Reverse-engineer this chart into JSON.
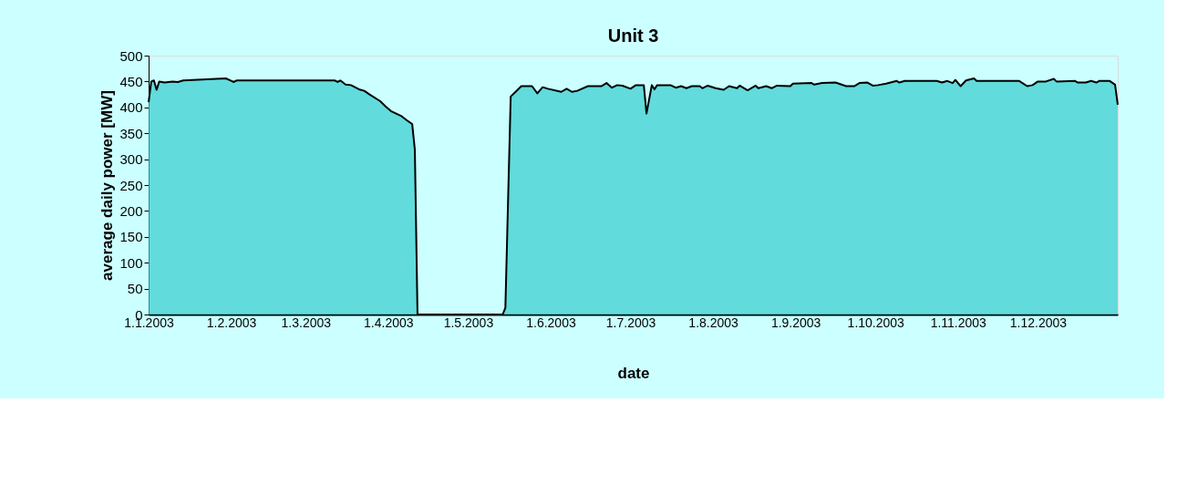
{
  "chart_data": {
    "type": "area",
    "title": "Unit 3",
    "xlabel": "date",
    "ylabel": "average daily power [MW]",
    "color": "#33cccc",
    "grid": false,
    "xlim": [
      "2003-01-01",
      "2003-12-31"
    ],
    "xticks": [
      {
        "value": "2003-01-01",
        "label": "1.1.2003"
      },
      {
        "value": "2003-02-01",
        "label": "1.2.2003"
      },
      {
        "value": "2003-03-01",
        "label": "1.3.2003"
      },
      {
        "value": "2003-04-01",
        "label": "1.4.2003"
      },
      {
        "value": "2003-05-01",
        "label": "1.5.2003"
      },
      {
        "value": "2003-06-01",
        "label": "1.6.2003"
      },
      {
        "value": "2003-07-01",
        "label": "1.7.2003"
      },
      {
        "value": "2003-08-01",
        "label": "1.8.2003"
      },
      {
        "value": "2003-09-01",
        "label": "1.9.2003"
      },
      {
        "value": "2003-10-01",
        "label": "1.10.2003"
      },
      {
        "value": "2003-11-01",
        "label": "1.11.2003"
      },
      {
        "value": "2003-12-01",
        "label": "1.12.2003"
      }
    ],
    "ylim": [
      0,
      500
    ],
    "yticks": [
      0,
      50,
      100,
      150,
      200,
      250,
      300,
      350,
      400,
      450,
      500
    ],
    "x": [
      "2003-01-01",
      "2003-01-02",
      "2003-01-03",
      "2003-01-04",
      "2003-01-05",
      "2003-01-07",
      "2003-01-10",
      "2003-01-12",
      "2003-01-14",
      "2003-01-30",
      "2003-02-02",
      "2003-02-03",
      "2003-03-12",
      "2003-03-13",
      "2003-03-14",
      "2003-03-16",
      "2003-03-18",
      "2003-03-21",
      "2003-03-23",
      "2003-03-25",
      "2003-03-29",
      "2003-03-31",
      "2003-04-02",
      "2003-04-06",
      "2003-04-08",
      "2003-04-10",
      "2003-04-11",
      "2003-04-12",
      "2003-05-14",
      "2003-05-15",
      "2003-05-17",
      "2003-05-19",
      "2003-05-21",
      "2003-05-25",
      "2003-05-27",
      "2003-05-29",
      "2003-05-31",
      "2003-06-05",
      "2003-06-07",
      "2003-06-09",
      "2003-06-11",
      "2003-06-15",
      "2003-06-20",
      "2003-06-22",
      "2003-06-24",
      "2003-06-26",
      "2003-06-28",
      "2003-07-01",
      "2003-07-03",
      "2003-07-06",
      "2003-07-07",
      "2003-07-09",
      "2003-07-10",
      "2003-07-11",
      "2003-07-16",
      "2003-07-18",
      "2003-07-20",
      "2003-07-22",
      "2003-07-24",
      "2003-07-27",
      "2003-07-28",
      "2003-07-30",
      "2003-08-02",
      "2003-08-05",
      "2003-08-07",
      "2003-08-10",
      "2003-08-11",
      "2003-08-14",
      "2003-08-17",
      "2003-08-18",
      "2003-08-21",
      "2003-08-23",
      "2003-08-25",
      "2003-08-30",
      "2003-08-31",
      "2003-09-07",
      "2003-09-08",
      "2003-09-11",
      "2003-09-16",
      "2003-09-20",
      "2003-09-23",
      "2003-09-25",
      "2003-09-28",
      "2003-09-30",
      "2003-10-02",
      "2003-10-05",
      "2003-10-09",
      "2003-10-10",
      "2003-10-12",
      "2003-10-24",
      "2003-10-26",
      "2003-10-28",
      "2003-10-30",
      "2003-10-31",
      "2003-11-02",
      "2003-11-04",
      "2003-11-07",
      "2003-11-08",
      "2003-11-24",
      "2003-11-27",
      "2003-11-29",
      "2003-12-01",
      "2003-12-04",
      "2003-12-07",
      "2003-12-08",
      "2003-12-15",
      "2003-12-16",
      "2003-12-19",
      "2003-12-21",
      "2003-12-23",
      "2003-12-24",
      "2003-12-28",
      "2003-12-30",
      "2003-12-31"
    ],
    "values": [
      410,
      450,
      452,
      434,
      450,
      448,
      450,
      449,
      452,
      456,
      449,
      452,
      452,
      449,
      452,
      444,
      443,
      435,
      432,
      425,
      412,
      402,
      393,
      383,
      375,
      368,
      318,
      0,
      0,
      13,
      421,
      431,
      441,
      441,
      427,
      439,
      436,
      430,
      436,
      430,
      432,
      441,
      441,
      447,
      438,
      443,
      442,
      436,
      443,
      443,
      388,
      443,
      435,
      443,
      443,
      438,
      441,
      437,
      441,
      441,
      437,
      442,
      437,
      434,
      441,
      437,
      442,
      433,
      442,
      437,
      441,
      437,
      442,
      441,
      446,
      447,
      444,
      447,
      448,
      441,
      441,
      447,
      448,
      442,
      443,
      446,
      451,
      448,
      451,
      451,
      448,
      451,
      447,
      453,
      441,
      452,
      456,
      451,
      451,
      441,
      443,
      450,
      450,
      455,
      450,
      451,
      448,
      448,
      451,
      448,
      451,
      451,
      444,
      405
    ]
  }
}
